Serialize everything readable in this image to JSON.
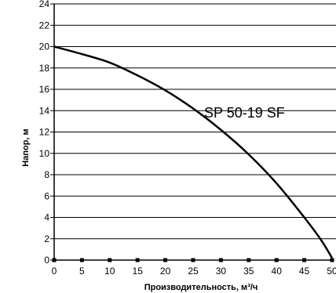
{
  "chart_data": {
    "type": "line",
    "xlabel": "Производительность, м³/ч",
    "ylabel": "Напор, м",
    "xlim": [
      0,
      50
    ],
    "ylim": [
      0,
      24
    ],
    "x_ticks": [
      "0",
      "5",
      "10",
      "15",
      "20",
      "25",
      "30",
      "35",
      "40",
      "45",
      "50"
    ],
    "y_ticks": [
      "0",
      "2",
      "4",
      "6",
      "8",
      "10",
      "12",
      "14",
      "16",
      "18",
      "20",
      "22",
      "24"
    ],
    "grid": "horizontal",
    "series": [
      {
        "name": "SP 50-19 SF",
        "x": [
          0,
          5,
          10,
          15,
          20,
          25,
          30,
          35,
          40,
          45,
          48,
          50
        ],
        "y": [
          20.0,
          19.3,
          18.5,
          17.3,
          15.9,
          14.2,
          12.2,
          9.9,
          7.2,
          4.0,
          1.9,
          0.2
        ]
      }
    ]
  }
}
